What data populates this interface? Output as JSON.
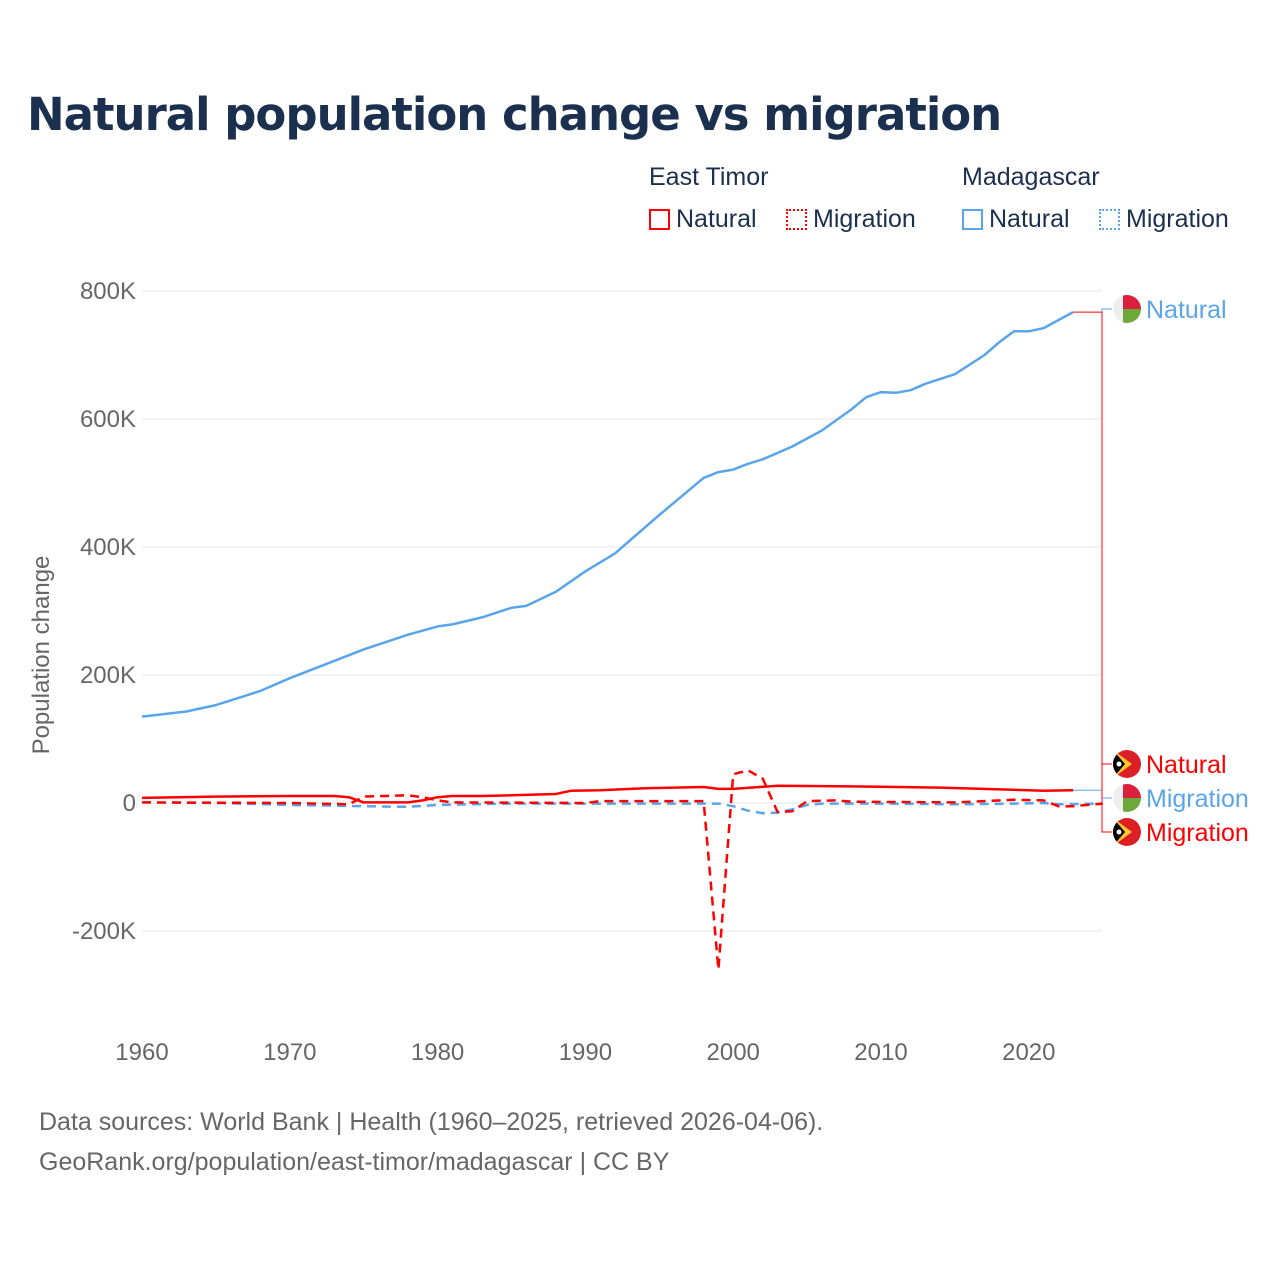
{
  "title": "Natural population change vs migration",
  "legend": {
    "groups": [
      {
        "name": "East Timor",
        "color": "#ff0000",
        "items": [
          "Natural",
          "Migration"
        ]
      },
      {
        "name": "Madagascar",
        "color": "#5aa5ea",
        "items": [
          "Natural",
          "Migration"
        ]
      }
    ]
  },
  "footer": {
    "line1": "Data sources: World Bank | Health (1960–2025, retrieved 2026-04-06).",
    "line2": "GeoRank.org/population/east-timor/madagascar | CC BY"
  },
  "end_labels": [
    "Natural",
    "Natural",
    "Migration",
    "Migration"
  ],
  "chart_data": {
    "type": "line",
    "xlabel": "",
    "ylabel": "Population change",
    "xlim": [
      1960,
      2025
    ],
    "ylim": [
      -300000,
      850000
    ],
    "xticks": [
      1960,
      1970,
      1980,
      1990,
      2000,
      2010,
      2020
    ],
    "xtick_labels": [
      "1960",
      "1970",
      "1980",
      "1990",
      "2000",
      "2010",
      "2020"
    ],
    "yticks": [
      -200000,
      0,
      200000,
      400000,
      600000,
      800000
    ],
    "ytick_labels": [
      "-200K",
      "0",
      "200K",
      "400K",
      "600K",
      "800K"
    ],
    "grid": true,
    "series": [
      {
        "name": "Madagascar Natural",
        "color": "#5aa5ea",
        "dash": false,
        "points": [
          [
            1960,
            135000
          ],
          [
            1963,
            143000
          ],
          [
            1965,
            153000
          ],
          [
            1968,
            175000
          ],
          [
            1970,
            195000
          ],
          [
            1972,
            213000
          ],
          [
            1975,
            240000
          ],
          [
            1978,
            263000
          ],
          [
            1980,
            276000
          ],
          [
            1981,
            279000
          ],
          [
            1983,
            290000
          ],
          [
            1985,
            305000
          ],
          [
            1986,
            308000
          ],
          [
            1988,
            330000
          ],
          [
            1990,
            362000
          ],
          [
            1992,
            390000
          ],
          [
            1995,
            450000
          ],
          [
            1998,
            508000
          ],
          [
            1999,
            517000
          ],
          [
            2000,
            521000
          ],
          [
            2001,
            530000
          ],
          [
            2002,
            537000
          ],
          [
            2004,
            557000
          ],
          [
            2006,
            582000
          ],
          [
            2008,
            615000
          ],
          [
            2009,
            634000
          ],
          [
            2010,
            642000
          ],
          [
            2011,
            641000
          ],
          [
            2012,
            645000
          ],
          [
            2013,
            655000
          ],
          [
            2015,
            670000
          ],
          [
            2017,
            700000
          ],
          [
            2018,
            720000
          ],
          [
            2019,
            737000
          ],
          [
            2020,
            737000
          ],
          [
            2021,
            742000
          ],
          [
            2023,
            767000
          ]
        ]
      },
      {
        "name": "Madagascar Migration",
        "color": "#5aa5ea",
        "dash": true,
        "points": [
          [
            1960,
            1000
          ],
          [
            1965,
            0
          ],
          [
            1970,
            -3000
          ],
          [
            1975,
            -5000
          ],
          [
            1978,
            -6000
          ],
          [
            1980,
            -3000
          ],
          [
            1985,
            -1000
          ],
          [
            1990,
            -1000
          ],
          [
            1998,
            -1000
          ],
          [
            1999,
            -1000
          ],
          [
            2000,
            -5000
          ],
          [
            2001,
            -12000
          ],
          [
            2002,
            -16000
          ],
          [
            2003,
            -15000
          ],
          [
            2004,
            -10000
          ],
          [
            2005,
            -3000
          ],
          [
            2006,
            -1000
          ],
          [
            2010,
            -1000
          ],
          [
            2015,
            -2000
          ],
          [
            2019,
            -1000
          ],
          [
            2021,
            0
          ],
          [
            2022,
            -2000
          ],
          [
            2025,
            -1000
          ]
        ]
      },
      {
        "name": "East Timor Natural",
        "color": "#ff0000",
        "dash": false,
        "points": [
          [
            1960,
            8000
          ],
          [
            1965,
            10000
          ],
          [
            1970,
            11000
          ],
          [
            1973,
            11000
          ],
          [
            1974,
            9000
          ],
          [
            1975,
            1000
          ],
          [
            1978,
            1000
          ],
          [
            1979,
            4000
          ],
          [
            1980,
            9000
          ],
          [
            1981,
            11000
          ],
          [
            1983,
            11000
          ],
          [
            1985,
            12000
          ],
          [
            1988,
            14000
          ],
          [
            1989,
            19000
          ],
          [
            1991,
            20000
          ],
          [
            1994,
            23000
          ],
          [
            1998,
            25000
          ],
          [
            1999,
            22000
          ],
          [
            2000,
            22000
          ],
          [
            2003,
            27000
          ],
          [
            2008,
            26000
          ],
          [
            2014,
            24000
          ],
          [
            2020,
            20000
          ],
          [
            2021,
            19000
          ],
          [
            2023,
            20000
          ]
        ]
      },
      {
        "name": "East Timor Migration",
        "color": "#ff0000",
        "dash": true,
        "points": [
          [
            1960,
            1000
          ],
          [
            1970,
            0
          ],
          [
            1974,
            -2000
          ],
          [
            1975,
            10000
          ],
          [
            1978,
            12000
          ],
          [
            1979,
            9000
          ],
          [
            1980,
            4000
          ],
          [
            1981,
            1000
          ],
          [
            1990,
            0
          ],
          [
            1991,
            3000
          ],
          [
            1998,
            3000
          ],
          [
            1999,
            -260000
          ],
          [
            2000,
            45000
          ],
          [
            2001,
            51000
          ],
          [
            2002,
            38000
          ],
          [
            2003,
            -14000
          ],
          [
            2004,
            -13000
          ],
          [
            2005,
            3000
          ],
          [
            2007,
            4000
          ],
          [
            2008,
            2000
          ],
          [
            2015,
            1000
          ],
          [
            2019,
            5000
          ],
          [
            2021,
            4000
          ],
          [
            2022,
            -5000
          ],
          [
            2023,
            -5000
          ],
          [
            2025,
            -1000
          ]
        ]
      }
    ]
  }
}
